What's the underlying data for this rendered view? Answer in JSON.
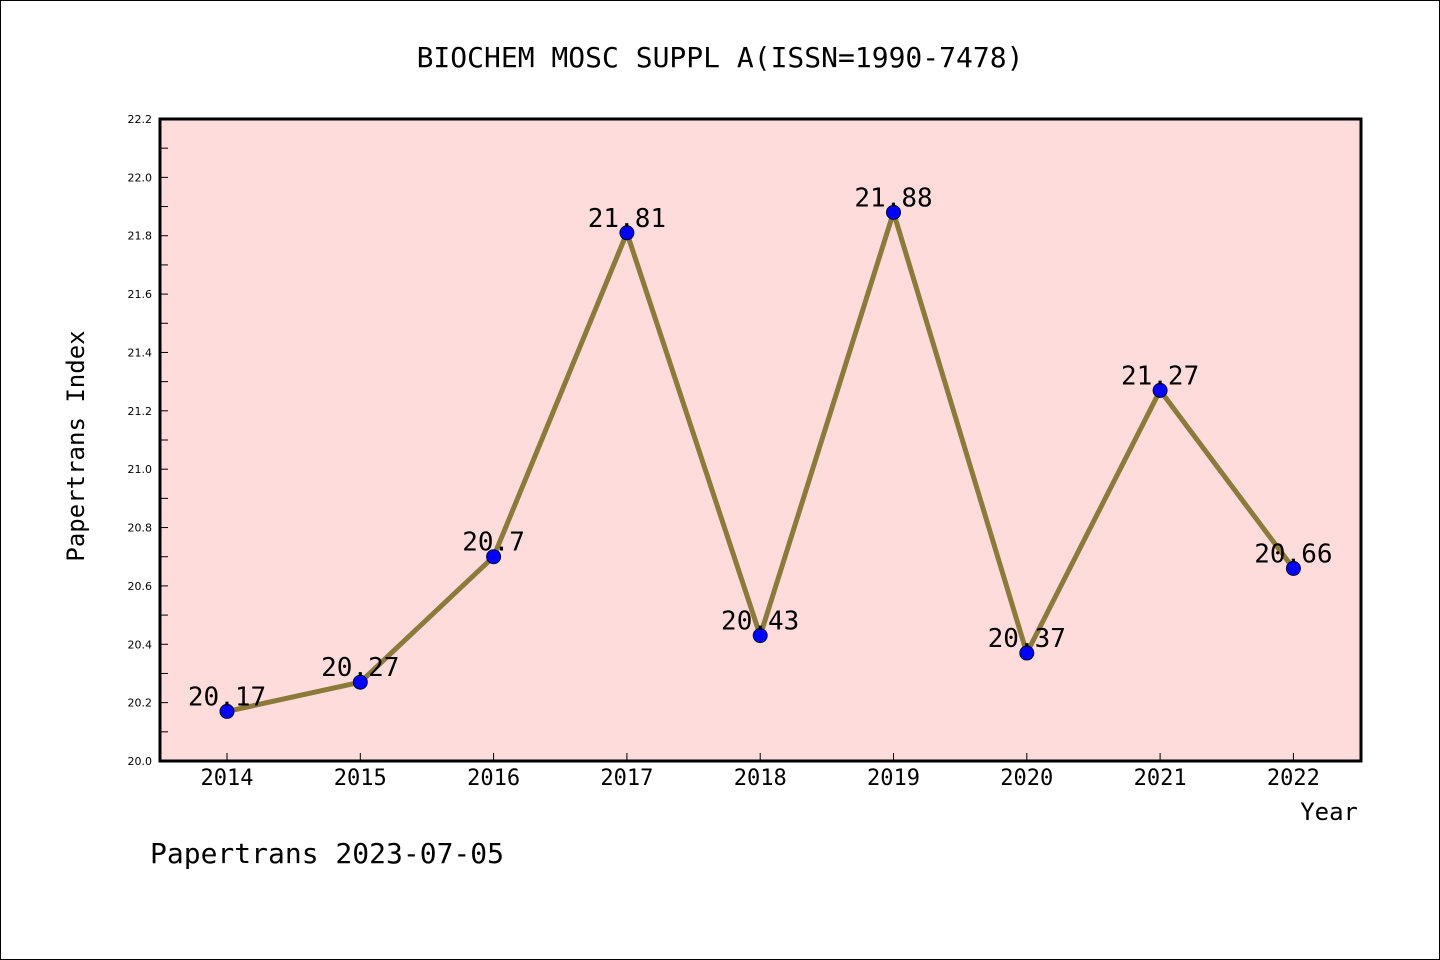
{
  "chart_data": {
    "type": "line",
    "title": "BIOCHEM MOSC SUPPL A(ISSN=1990-7478)",
    "xlabel": "Year",
    "ylabel": "Papertrans Index",
    "categories": [
      "2014",
      "2015",
      "2016",
      "2017",
      "2018",
      "2019",
      "2020",
      "2021",
      "2022"
    ],
    "series": [
      {
        "values": [
          20.17,
          20.27,
          20.7,
          21.81,
          20.43,
          21.88,
          20.37,
          21.27,
          20.66
        ],
        "labels": [
          "20.17",
          "20.27",
          "20.7",
          "21.81",
          "20.43",
          "21.88",
          "20.37",
          "21.27",
          "20.66"
        ],
        "line_color": "#8b7a3a",
        "marker_color": "#0000ff"
      }
    ],
    "ylim": [
      20.0,
      22.2
    ],
    "yticks": [
      "20.0",
      "20.2",
      "20.4",
      "20.6",
      "20.8",
      "21.0",
      "21.2",
      "21.4",
      "21.6",
      "21.8",
      "22.0",
      "22.2"
    ],
    "plot_background": "#ffdcdc",
    "grid": false,
    "legend": "none"
  },
  "footer": {
    "text": "Papertrans 2023-07-05"
  }
}
